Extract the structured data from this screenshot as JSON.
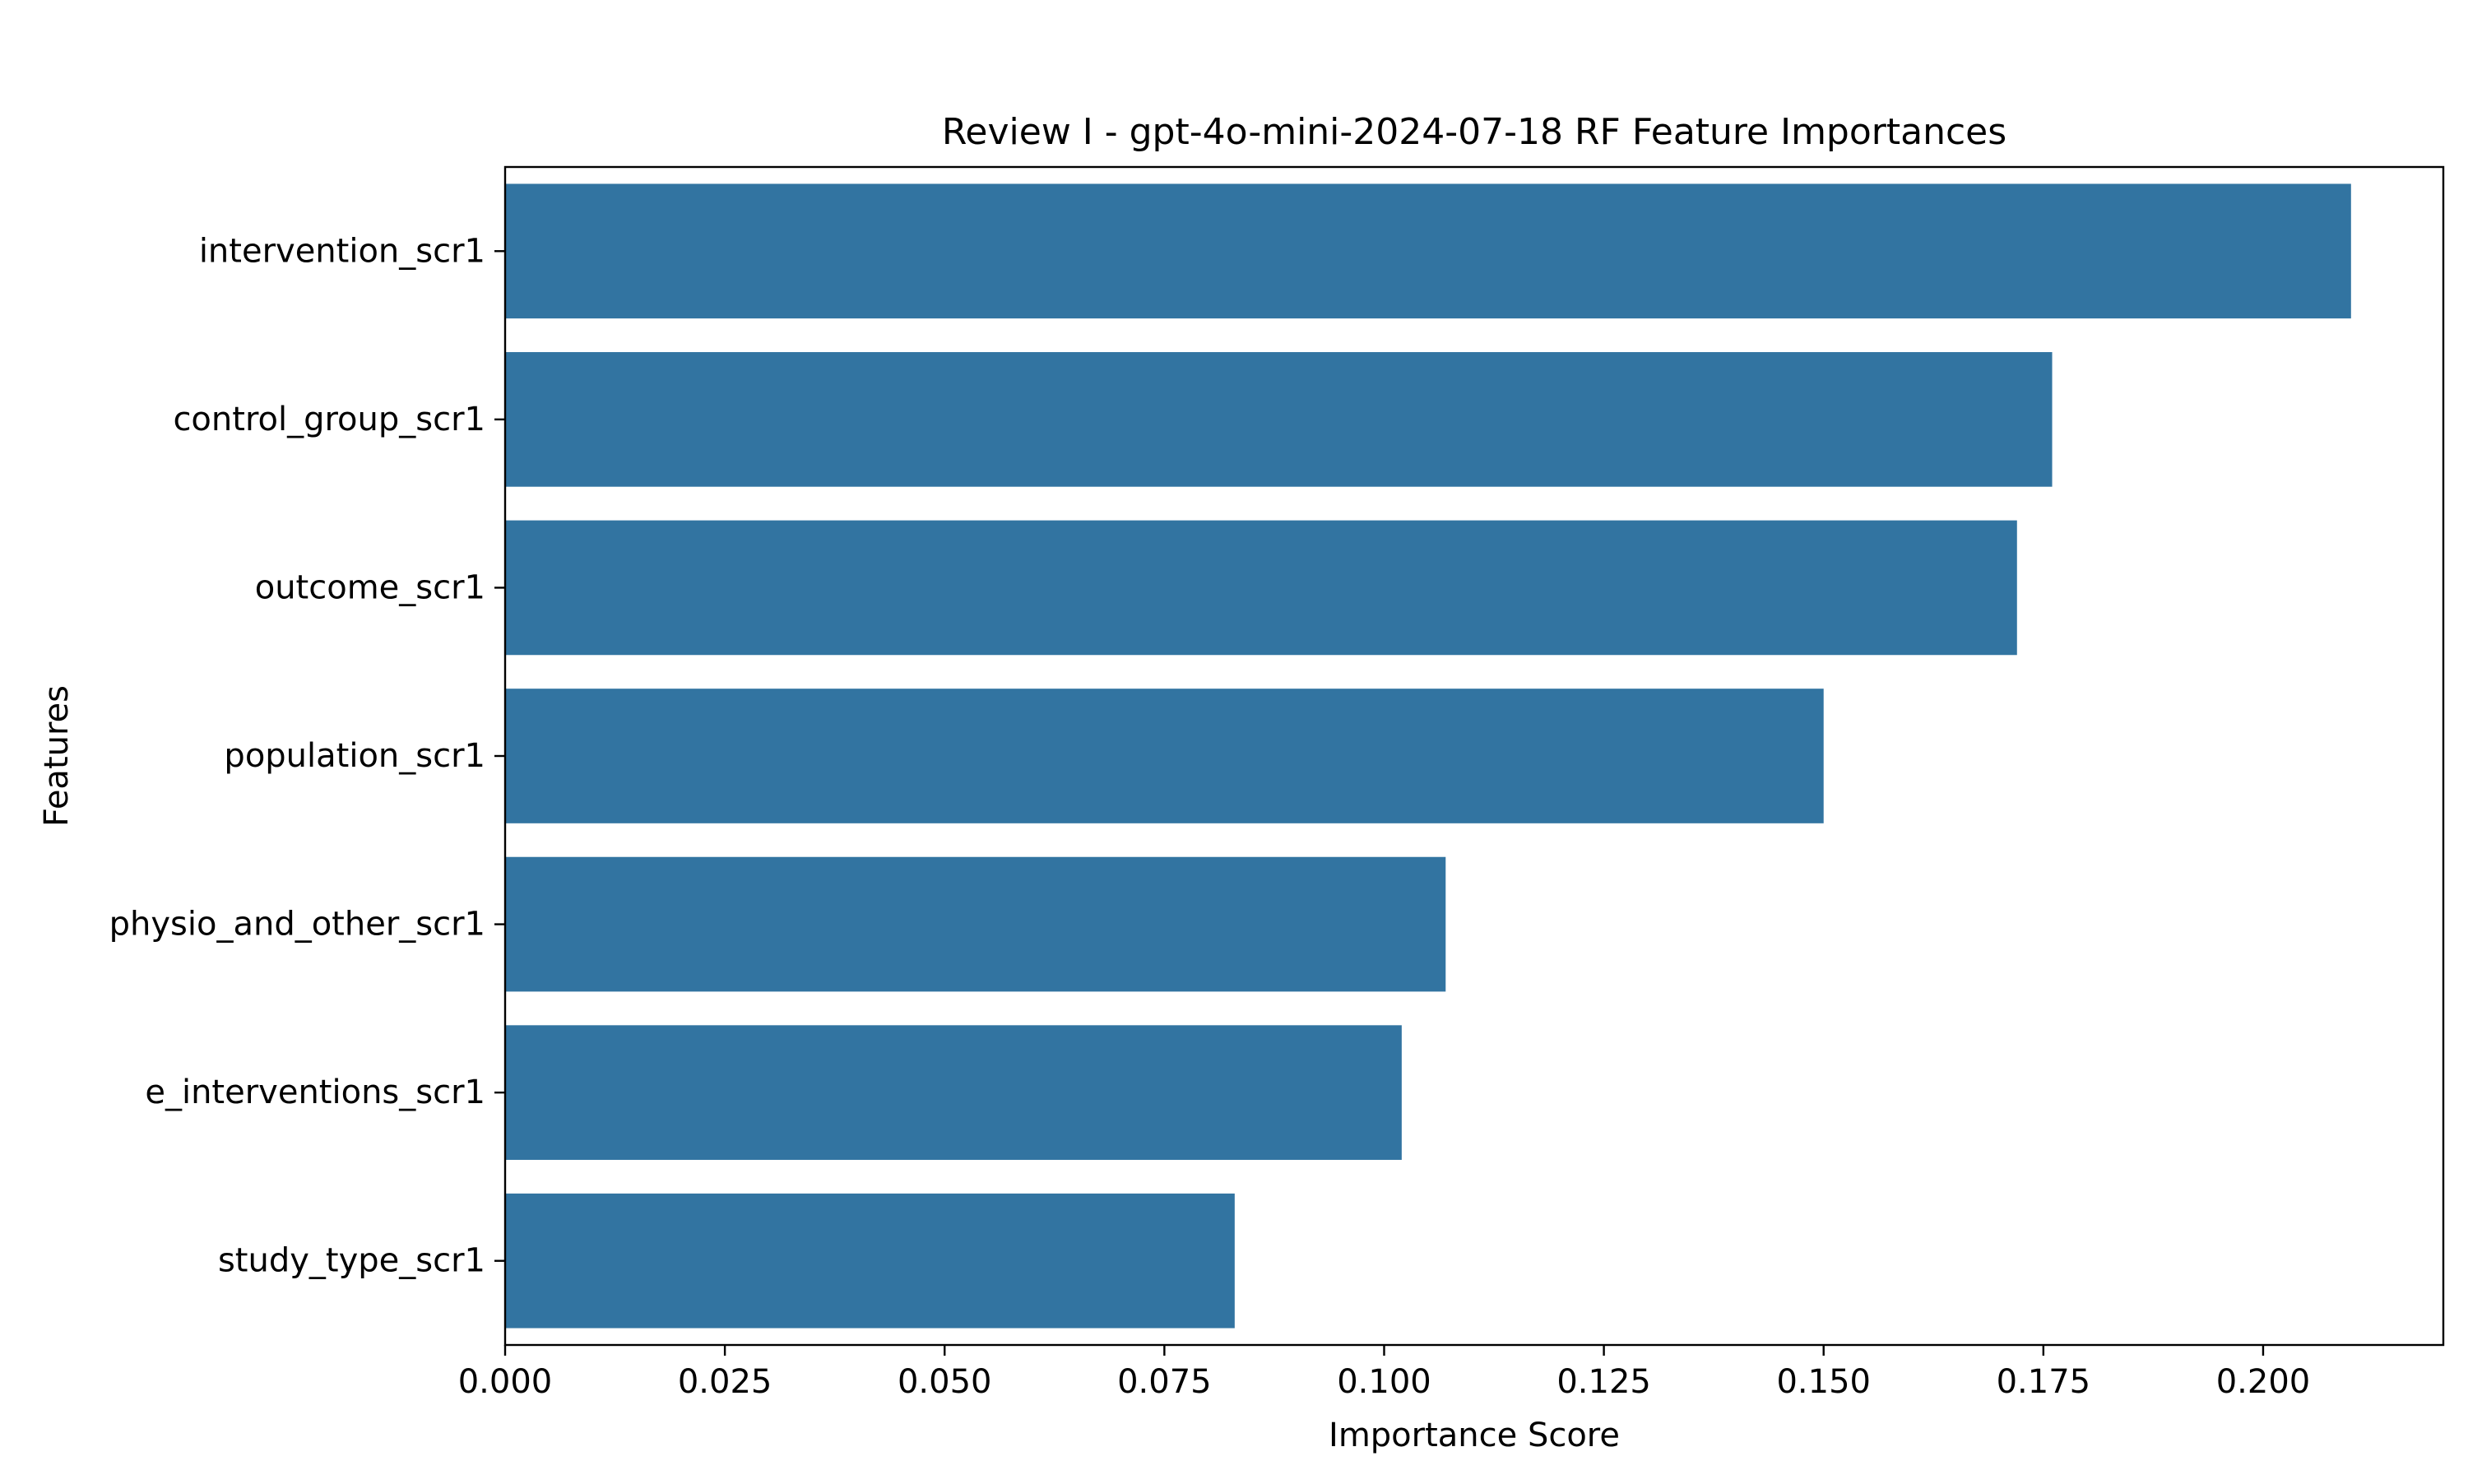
{
  "chart_data": {
    "type": "bar",
    "orientation": "horizontal",
    "title": "Review I - gpt-4o-mini-2024-07-18 RF Feature Importances",
    "xlabel": "Importance Score",
    "ylabel": "Features",
    "categories": [
      "intervention_scr1",
      "control_group_scr1",
      "outcome_scr1",
      "population_scr1",
      "physio_and_other_scr1",
      "e_interventions_scr1",
      "study_type_scr1"
    ],
    "values": [
      0.21,
      0.176,
      0.172,
      0.15,
      0.107,
      0.102,
      0.083
    ],
    "xlim": [
      0,
      0.2205
    ],
    "xticks": [
      0.0,
      0.025,
      0.05,
      0.075,
      0.1,
      0.125,
      0.15,
      0.175,
      0.2
    ],
    "xtick_labels": [
      "0.000",
      "0.025",
      "0.050",
      "0.075",
      "0.100",
      "0.125",
      "0.150",
      "0.175",
      "0.200"
    ],
    "grid": false,
    "legend": "none",
    "bar_color": "#3274a1"
  }
}
